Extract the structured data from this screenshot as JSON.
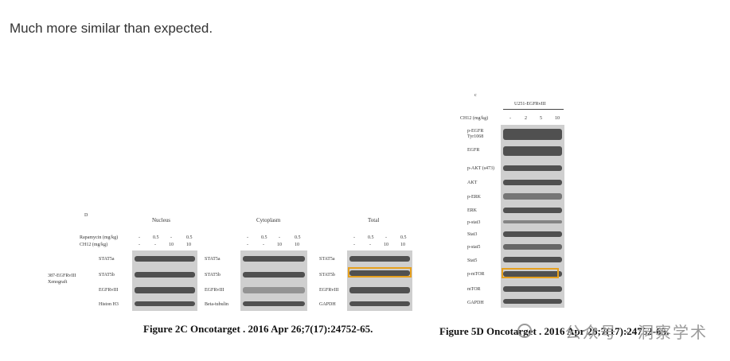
{
  "post": {
    "text": "Much more similar than expected."
  },
  "left_figure": {
    "panel_letter": "D",
    "groups": [
      "Nucleus",
      "Cytoplasm",
      "Total"
    ],
    "treatments": {
      "rapamycin_label": "Rapamycin (mg/kg)",
      "ch12_label": "CH12 (mg/kg)",
      "rapamycin_values": [
        "-",
        "0.5",
        "-",
        "0.5"
      ],
      "ch12_values": [
        "-",
        "-",
        "10",
        "10"
      ]
    },
    "sample_label": "387-EGFRvIII Xenograft",
    "nucleus_rows": [
      "STAT5a",
      "STAT5b",
      "EGFRvIII",
      "Histon H3"
    ],
    "cytoplasm_rows": [
      "STAT5a",
      "STAT5b",
      "EGFRvIII",
      "Beta-tubulin"
    ],
    "total_rows": [
      "STAT5a",
      "STAT5b",
      "EGFRvIII",
      "GAPDH"
    ],
    "caption": "Figure 2C Oncotarget . 2016 Apr 26;7(17):24752-65."
  },
  "right_figure": {
    "panel_letter": "c",
    "cell_line": "U251-EGFRvIII",
    "ch12_label": "CH12 (mg/kg)",
    "ch12_values": [
      "-",
      "2",
      "5",
      "10"
    ],
    "rows": [
      "p-EGFR Tyr1068",
      "EGFR",
      "p-AKT (s473)",
      "AKT",
      "p-ERK",
      "ERK",
      "p-stat3",
      "Stat3",
      "p-stat5",
      "Stat5",
      "p-mTOR",
      "mTOR",
      "GAPDH"
    ],
    "caption": "Figure 5D Oncotarget . 2016 Apr 26;7(17):24752-65."
  },
  "watermark": {
    "text": "公众号 · 洞察学术"
  },
  "colors": {
    "highlight": "#e6a01e",
    "band": "#3a3a3a",
    "membrane": "#cfcfcf"
  }
}
